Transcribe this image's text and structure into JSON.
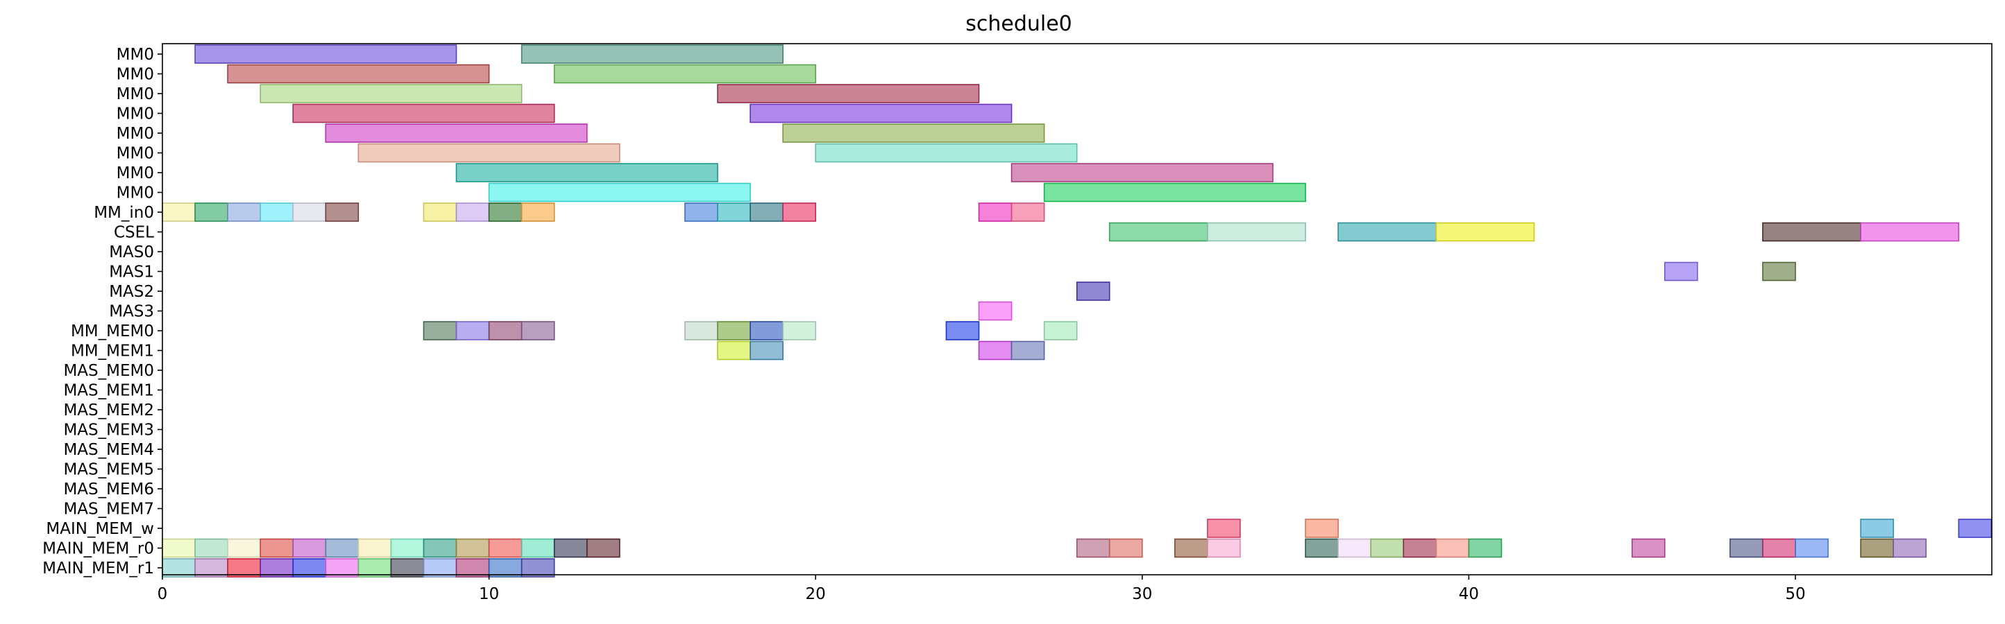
{
  "chart_data": {
    "type": "gantt",
    "title": "schedule0",
    "xlabel": "",
    "ylabel": "",
    "xlim": [
      0,
      56
    ],
    "xticks": [
      0,
      10,
      20,
      30,
      40,
      50
    ],
    "rows": [
      "MM0",
      "MM0",
      "MM0",
      "MM0",
      "MM0",
      "MM0",
      "MM0",
      "MM0",
      "MM_in0",
      "CSEL",
      "MAS0",
      "MAS1",
      "MAS2",
      "MAS3",
      "MM_MEM0",
      "MM_MEM1",
      "MAS_MEM0",
      "MAS_MEM1",
      "MAS_MEM2",
      "MAS_MEM3",
      "MAS_MEM4",
      "MAS_MEM5",
      "MAS_MEM6",
      "MAS_MEM7",
      "MAIN_MEM_w",
      "MAIN_MEM_r0",
      "MAIN_MEM_r1"
    ],
    "tasks": [
      {
        "row": 0,
        "start": 1,
        "end": 9,
        "color": "#6a4fd8"
      },
      {
        "row": 0,
        "start": 11,
        "end": 19,
        "color": "#4f9a84"
      },
      {
        "row": 1,
        "start": 2,
        "end": 10,
        "color": "#b84a4a"
      },
      {
        "row": 1,
        "start": 12,
        "end": 20,
        "color": "#6cc05a"
      },
      {
        "row": 2,
        "start": 3,
        "end": 11,
        "color": "#a8d880"
      },
      {
        "row": 2,
        "start": 17,
        "end": 25,
        "color": "#a83050"
      },
      {
        "row": 3,
        "start": 4,
        "end": 12,
        "color": "#c83060"
      },
      {
        "row": 3,
        "start": 18,
        "end": 26,
        "color": "#7a3ae0"
      },
      {
        "row": 4,
        "start": 5,
        "end": 13,
        "color": "#d040c8"
      },
      {
        "row": 4,
        "start": 19,
        "end": 27,
        "color": "#90b050"
      },
      {
        "row": 5,
        "start": 6,
        "end": 14,
        "color": "#e8a890"
      },
      {
        "row": 5,
        "start": 20,
        "end": 28,
        "color": "#70e0c8"
      },
      {
        "row": 6,
        "start": 9,
        "end": 17,
        "color": "#20b0a0"
      },
      {
        "row": 6,
        "start": 26,
        "end": 34,
        "color": "#c04890"
      },
      {
        "row": 7,
        "start": 10,
        "end": 18,
        "color": "#40f0e8"
      },
      {
        "row": 7,
        "start": 27,
        "end": 35,
        "color": "#20d060"
      },
      {
        "row": 8,
        "start": 0,
        "end": 1,
        "color": "#f8f0a0"
      },
      {
        "row": 8,
        "start": 1,
        "end": 2,
        "color": "#30a868"
      },
      {
        "row": 8,
        "start": 2,
        "end": 3,
        "color": "#88a8e0"
      },
      {
        "row": 8,
        "start": 3,
        "end": 4,
        "color": "#60e8f8"
      },
      {
        "row": 8,
        "start": 4,
        "end": 5,
        "color": "#d8d8e8"
      },
      {
        "row": 8,
        "start": 5,
        "end": 6,
        "color": "#804848"
      },
      {
        "row": 8,
        "start": 8,
        "end": 9,
        "color": "#f0e868"
      },
      {
        "row": 8,
        "start": 9,
        "end": 10,
        "color": "#c8a8f0"
      },
      {
        "row": 8,
        "start": 10,
        "end": 11,
        "color": "#307830"
      },
      {
        "row": 8,
        "start": 11,
        "end": 12,
        "color": "#f8a840"
      },
      {
        "row": 8,
        "start": 16,
        "end": 17,
        "color": "#4880e0"
      },
      {
        "row": 8,
        "start": 17,
        "end": 18,
        "color": "#30b8c0"
      },
      {
        "row": 8,
        "start": 18,
        "end": 19,
        "color": "#307888"
      },
      {
        "row": 8,
        "start": 19,
        "end": 20,
        "color": "#e83060"
      },
      {
        "row": 8,
        "start": 25,
        "end": 26,
        "color": "#f030c0"
      },
      {
        "row": 8,
        "start": 26,
        "end": 27,
        "color": "#f06090"
      },
      {
        "row": 9,
        "start": 29,
        "end": 32,
        "color": "#40c070"
      },
      {
        "row": 9,
        "start": 32,
        "end": 35,
        "color": "#a8e0c8"
      },
      {
        "row": 9,
        "start": 36,
        "end": 39,
        "color": "#30a8b0"
      },
      {
        "row": 9,
        "start": 39,
        "end": 42,
        "color": "#f0f020"
      },
      {
        "row": 9,
        "start": 49,
        "end": 52,
        "color": "#503030"
      },
      {
        "row": 9,
        "start": 52,
        "end": 55,
        "color": "#e850e0"
      },
      {
        "row": 11,
        "start": 46,
        "end": 47,
        "color": "#8868f0"
      },
      {
        "row": 11,
        "start": 49,
        "end": 50,
        "color": "#607840"
      },
      {
        "row": 12,
        "start": 28,
        "end": 29,
        "color": "#4838b8"
      },
      {
        "row": 13,
        "start": 25,
        "end": 26,
        "color": "#f860f8"
      },
      {
        "row": 14,
        "start": 8,
        "end": 9,
        "color": "#507858"
      },
      {
        "row": 14,
        "start": 9,
        "end": 10,
        "color": "#8878e8"
      },
      {
        "row": 14,
        "start": 10,
        "end": 11,
        "color": "#904870"
      },
      {
        "row": 14,
        "start": 11,
        "end": 12,
        "color": "#886098"
      },
      {
        "row": 14,
        "start": 16,
        "end": 17,
        "color": "#c0d8c8"
      },
      {
        "row": 14,
        "start": 17,
        "end": 18,
        "color": "#78a840"
      },
      {
        "row": 14,
        "start": 18,
        "end": 19,
        "color": "#3058c0"
      },
      {
        "row": 14,
        "start": 19,
        "end": 20,
        "color": "#b8e8c8"
      },
      {
        "row": 14,
        "start": 24,
        "end": 25,
        "color": "#2040e8"
      },
      {
        "row": 14,
        "start": 27,
        "end": 28,
        "color": "#a0e8b8"
      },
      {
        "row": 15,
        "start": 17,
        "end": 18,
        "color": "#d0f030"
      },
      {
        "row": 15,
        "start": 18,
        "end": 19,
        "color": "#4890b8"
      },
      {
        "row": 15,
        "start": 25,
        "end": 26,
        "color": "#d040e8"
      },
      {
        "row": 15,
        "start": 26,
        "end": 27,
        "color": "#6878b8"
      },
      {
        "row": 24,
        "start": 32,
        "end": 33,
        "color": "#f04870"
      },
      {
        "row": 24,
        "start": 35,
        "end": 36,
        "color": "#f88868"
      },
      {
        "row": 24,
        "start": 52,
        "end": 53,
        "color": "#40a8d0"
      },
      {
        "row": 24,
        "start": 55,
        "end": 56,
        "color": "#4848e8"
      },
      {
        "row": 25,
        "start": 0,
        "end": 1,
        "color": "#e8f8a8"
      },
      {
        "row": 25,
        "start": 1,
        "end": 2,
        "color": "#98d8b8"
      },
      {
        "row": 25,
        "start": 2,
        "end": 3,
        "color": "#f8f0c8"
      },
      {
        "row": 25,
        "start": 3,
        "end": 4,
        "color": "#e05048"
      },
      {
        "row": 25,
        "start": 4,
        "end": 5,
        "color": "#c058c8"
      },
      {
        "row": 25,
        "start": 5,
        "end": 6,
        "color": "#6890c0"
      },
      {
        "row": 25,
        "start": 6,
        "end": 7,
        "color": "#f8f0b0"
      },
      {
        "row": 25,
        "start": 7,
        "end": 8,
        "color": "#80f0c8"
      },
      {
        "row": 25,
        "start": 8,
        "end": 9,
        "color": "#30a088"
      },
      {
        "row": 25,
        "start": 9,
        "end": 10,
        "color": "#b09850"
      },
      {
        "row": 25,
        "start": 10,
        "end": 11,
        "color": "#f05850"
      },
      {
        "row": 25,
        "start": 11,
        "end": 12,
        "color": "#60e0b8"
      },
      {
        "row": 25,
        "start": 12,
        "end": 13,
        "color": "#383858"
      },
      {
        "row": 25,
        "start": 13,
        "end": 14,
        "color": "#602830"
      },
      {
        "row": 25,
        "start": 28,
        "end": 29,
        "color": "#b06080"
      },
      {
        "row": 25,
        "start": 29,
        "end": 30,
        "color": "#e07068"
      },
      {
        "row": 25,
        "start": 31,
        "end": 32,
        "color": "#905838"
      },
      {
        "row": 25,
        "start": 32,
        "end": 33,
        "color": "#f8a8d0"
      },
      {
        "row": 25,
        "start": 35,
        "end": 36,
        "color": "#306858"
      },
      {
        "row": 25,
        "start": 36,
        "end": 37,
        "color": "#f0d8f8"
      },
      {
        "row": 25,
        "start": 37,
        "end": 38,
        "color": "#98c878"
      },
      {
        "row": 25,
        "start": 38,
        "end": 39,
        "color": "#a03050"
      },
      {
        "row": 25,
        "start": 39,
        "end": 40,
        "color": "#f89888"
      },
      {
        "row": 25,
        "start": 40,
        "end": 41,
        "color": "#30b868"
      },
      {
        "row": 25,
        "start": 45,
        "end": 46,
        "color": "#c048a0"
      },
      {
        "row": 25,
        "start": 48,
        "end": 49,
        "color": "#505888"
      },
      {
        "row": 25,
        "start": 49,
        "end": 50,
        "color": "#d03070"
      },
      {
        "row": 25,
        "start": 50,
        "end": 51,
        "color": "#5888f0"
      },
      {
        "row": 25,
        "start": 52,
        "end": 53,
        "color": "#706028"
      },
      {
        "row": 25,
        "start": 53,
        "end": 54,
        "color": "#9068b8"
      },
      {
        "row": 26,
        "start": 0,
        "end": 1,
        "color": "#80d0d0"
      },
      {
        "row": 26,
        "start": 1,
        "end": 2,
        "color": "#b888c8"
      },
      {
        "row": 26,
        "start": 2,
        "end": 3,
        "color": "#f02038"
      },
      {
        "row": 26,
        "start": 3,
        "end": 4,
        "color": "#7828c8"
      },
      {
        "row": 26,
        "start": 4,
        "end": 5,
        "color": "#2838e8"
      },
      {
        "row": 26,
        "start": 5,
        "end": 6,
        "color": "#f068f0"
      },
      {
        "row": 26,
        "start": 6,
        "end": 7,
        "color": "#70e078"
      },
      {
        "row": 26,
        "start": 7,
        "end": 8,
        "color": "#404050"
      },
      {
        "row": 26,
        "start": 8,
        "end": 9,
        "color": "#88a8f0"
      },
      {
        "row": 26,
        "start": 9,
        "end": 10,
        "color": "#b03878"
      },
      {
        "row": 26,
        "start": 10,
        "end": 11,
        "color": "#3870c8"
      },
      {
        "row": 26,
        "start": 11,
        "end": 12,
        "color": "#4848b8"
      }
    ]
  }
}
